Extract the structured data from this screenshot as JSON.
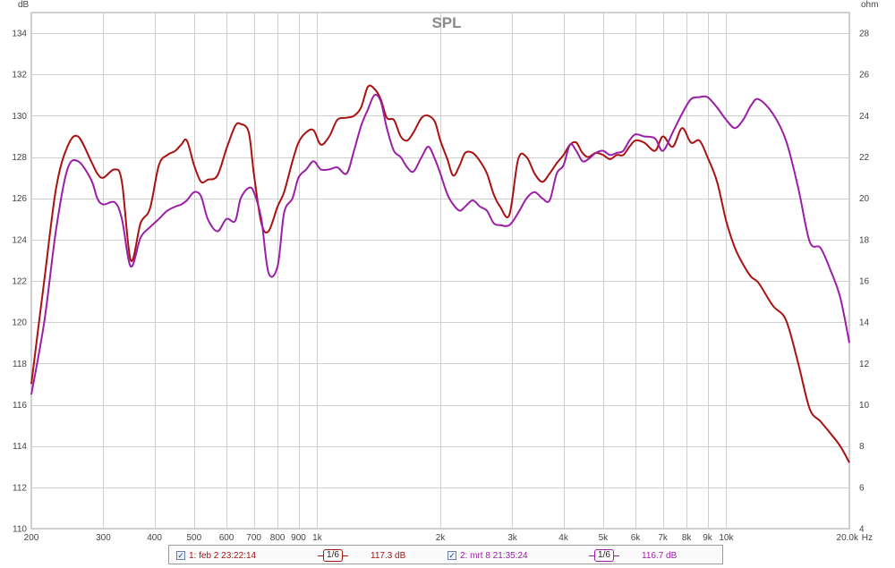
{
  "chart_data": {
    "type": "line",
    "title": "SPL",
    "x_scale": "log",
    "xlim": [
      200,
      20000
    ],
    "ylim": [
      110,
      135
    ],
    "ylabel": "dB",
    "y2label": "ohm",
    "y2lim": [
      4,
      29
    ],
    "xlabel": "Hz",
    "x_ticks": [
      {
        "v": 200,
        "label": "200"
      },
      {
        "v": 300,
        "label": "300"
      },
      {
        "v": 400,
        "label": "400"
      },
      {
        "v": 500,
        "label": "500"
      },
      {
        "v": 600,
        "label": "600"
      },
      {
        "v": 700,
        "label": "700"
      },
      {
        "v": 800,
        "label": "800"
      },
      {
        "v": 900,
        "label": "900"
      },
      {
        "v": 1000,
        "label": "1k"
      },
      {
        "v": 2000,
        "label": "2k"
      },
      {
        "v": 3000,
        "label": "3k"
      },
      {
        "v": 4000,
        "label": "4k"
      },
      {
        "v": 5000,
        "label": "5k"
      },
      {
        "v": 6000,
        "label": "6k"
      },
      {
        "v": 7000,
        "label": "7k"
      },
      {
        "v": 8000,
        "label": "8k"
      },
      {
        "v": 9000,
        "label": "9k"
      },
      {
        "v": 10000,
        "label": "10k"
      },
      {
        "v": 20000,
        "label": "20.0k"
      }
    ],
    "y_ticks": [
      110,
      112,
      114,
      116,
      118,
      120,
      122,
      124,
      126,
      128,
      130,
      132,
      134
    ],
    "y2_ticks": [
      4,
      6,
      8,
      10,
      12,
      14,
      16,
      18,
      20,
      22,
      24,
      26,
      28
    ],
    "grid": true,
    "series": [
      {
        "name": "1: feb 2 23:22:14",
        "color": "#aa1111",
        "x": [
          200,
          215,
          230,
          245,
          260,
          280,
          290,
          300,
          320,
          333,
          350,
          370,
          390,
          410,
          430,
          450,
          465,
          480,
          500,
          520,
          540,
          570,
          600,
          630,
          650,
          680,
          700,
          730,
          760,
          800,
          830,
          870,
          900,
          940,
          980,
          1020,
          1070,
          1120,
          1180,
          1230,
          1280,
          1330,
          1380,
          1430,
          1480,
          1540,
          1600,
          1660,
          1720,
          1800,
          1870,
          1940,
          2000,
          2080,
          2150,
          2230,
          2300,
          2400,
          2500,
          2600,
          2700,
          2800,
          2950,
          3100,
          3250,
          3400,
          3550,
          3700,
          3850,
          4000,
          4150,
          4300,
          4450,
          4600,
          4800,
          5000,
          5200,
          5400,
          5600,
          5800,
          6000,
          6300,
          6700,
          7000,
          7400,
          7800,
          8200,
          8600,
          9000,
          9500,
          10000,
          10500,
          11000,
          11500,
          12000,
          13000,
          14000,
          15000,
          16000,
          17000,
          18000,
          19000,
          20000
        ],
        "y": [
          117.0,
          122.0,
          126.5,
          128.5,
          129.0,
          127.8,
          127.2,
          127.0,
          127.4,
          126.8,
          123.0,
          124.8,
          125.5,
          127.6,
          128.1,
          128.3,
          128.6,
          128.8,
          127.6,
          126.8,
          126.9,
          127.1,
          128.4,
          129.5,
          129.6,
          129.2,
          127.2,
          124.8,
          124.4,
          125.6,
          126.3,
          127.8,
          128.7,
          129.2,
          129.3,
          128.6,
          129.0,
          129.8,
          129.9,
          130.0,
          130.4,
          131.4,
          131.3,
          130.8,
          129.9,
          129.8,
          129.0,
          128.8,
          129.2,
          129.9,
          130.0,
          129.7,
          128.8,
          127.9,
          127.1,
          127.6,
          128.2,
          128.2,
          127.8,
          127.2,
          126.2,
          125.6,
          125.2,
          127.9,
          128.0,
          127.2,
          126.8,
          127.2,
          127.7,
          128.1,
          128.6,
          128.7,
          128.2,
          128.0,
          128.2,
          128.1,
          127.9,
          128.1,
          128.1,
          128.5,
          128.8,
          128.7,
          128.3,
          129.0,
          128.5,
          129.4,
          128.7,
          128.8,
          128.0,
          126.8,
          124.9,
          123.6,
          122.8,
          122.2,
          121.9,
          120.8,
          120.1,
          118.0,
          115.8,
          115.2,
          114.6,
          114.0,
          113.2
        ]
      },
      {
        "name": "2: mrt 8 21:35:24",
        "color": "#9a1fa6",
        "x": [
          200,
          215,
          230,
          245,
          260,
          280,
          290,
          300,
          320,
          333,
          350,
          370,
          390,
          410,
          430,
          450,
          465,
          480,
          500,
          520,
          540,
          570,
          600,
          630,
          650,
          680,
          700,
          730,
          760,
          800,
          830,
          870,
          900,
          940,
          980,
          1020,
          1070,
          1120,
          1180,
          1230,
          1280,
          1330,
          1380,
          1430,
          1480,
          1540,
          1600,
          1660,
          1720,
          1800,
          1870,
          1940,
          2000,
          2080,
          2150,
          2230,
          2300,
          2400,
          2500,
          2600,
          2700,
          2800,
          2950,
          3100,
          3250,
          3400,
          3550,
          3700,
          3850,
          4000,
          4150,
          4300,
          4450,
          4600,
          4800,
          5000,
          5200,
          5400,
          5600,
          5800,
          6000,
          6300,
          6700,
          7000,
          7400,
          7800,
          8200,
          8600,
          9000,
          9500,
          10000,
          10500,
          11000,
          11500,
          12000,
          13000,
          14000,
          15000,
          16000,
          17000,
          18000,
          19000,
          20000
        ],
        "y": [
          116.5,
          120.0,
          124.5,
          127.4,
          127.8,
          126.9,
          126.0,
          125.7,
          125.8,
          125.0,
          122.7,
          124.1,
          124.6,
          125.0,
          125.4,
          125.6,
          125.7,
          125.9,
          126.3,
          126.1,
          125.0,
          124.4,
          125.0,
          124.9,
          126.0,
          126.5,
          126.3,
          125.0,
          122.4,
          122.7,
          125.3,
          126.0,
          127.0,
          127.4,
          127.8,
          127.4,
          127.4,
          127.5,
          127.2,
          128.3,
          129.5,
          130.3,
          131.0,
          130.7,
          129.4,
          128.3,
          128.0,
          127.5,
          127.3,
          128.0,
          128.5,
          127.9,
          127.2,
          126.2,
          125.7,
          125.4,
          125.6,
          125.9,
          125.6,
          125.4,
          124.8,
          124.7,
          124.7,
          125.3,
          126.0,
          126.3,
          126.0,
          125.9,
          127.2,
          127.6,
          128.6,
          128.3,
          127.8,
          127.9,
          128.2,
          128.3,
          128.1,
          128.2,
          128.3,
          128.8,
          129.1,
          129.0,
          128.9,
          128.3,
          129.2,
          130.1,
          130.8,
          130.9,
          130.9,
          130.4,
          129.8,
          129.4,
          129.8,
          130.5,
          130.8,
          130.1,
          128.8,
          126.5,
          123.9,
          123.6,
          122.5,
          121.2,
          119.0
        ]
      }
    ],
    "legend": {
      "items": [
        {
          "label": "1: feb 2 23:22:14",
          "checked": "✓",
          "smoothing": "1/6",
          "value": "117.3 dB",
          "color": "#aa1111"
        },
        {
          "label": "2: mrt 8 21:35:24",
          "checked": "✓",
          "smoothing": "1/6",
          "value": "116.7 dB",
          "color": "#9a1fa6"
        }
      ]
    }
  }
}
